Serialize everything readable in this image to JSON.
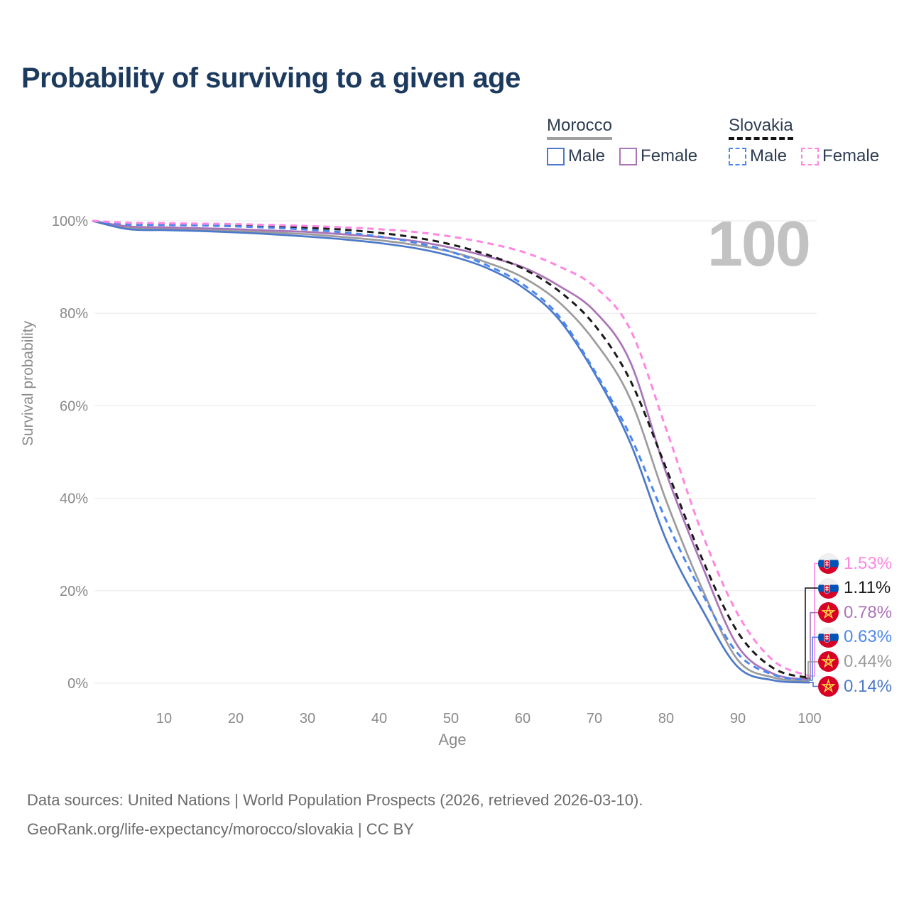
{
  "title": "Probability of surviving to a given age",
  "watermark": "100",
  "legend": {
    "groups": [
      {
        "name": "Morocco",
        "underline": {
          "style": "solid",
          "color": "#a0a0a0"
        },
        "items": [
          {
            "label": "Male",
            "color": "#4c79c9",
            "dash": false
          },
          {
            "label": "Female",
            "color": "#ab74b8",
            "dash": false
          }
        ]
      },
      {
        "name": "Slovakia",
        "underline": {
          "style": "dashed",
          "color": "#141414"
        },
        "items": [
          {
            "label": "Male",
            "color": "#4c88f0",
            "dash": true
          },
          {
            "label": "Female",
            "color": "#ff87e3",
            "dash": true
          }
        ]
      }
    ]
  },
  "chart_data": {
    "type": "line",
    "title": "Probability of surviving to a given age",
    "xlabel": "Age",
    "ylabel": "Survival probability",
    "xlim": [
      0,
      100
    ],
    "ylim": [
      0,
      100
    ],
    "grid": true,
    "x_ticks": [
      10,
      20,
      30,
      40,
      50,
      60,
      70,
      80,
      90,
      100
    ],
    "y_ticks": [
      0,
      20,
      40,
      60,
      80,
      100
    ],
    "y_tick_labels": [
      "0%",
      "20%",
      "40%",
      "60%",
      "80%",
      "100%"
    ],
    "x": [
      0,
      5,
      10,
      15,
      20,
      25,
      30,
      35,
      40,
      45,
      50,
      55,
      60,
      65,
      70,
      75,
      80,
      85,
      90,
      95,
      100
    ],
    "series": [
      {
        "id": "morocco_all",
        "country": "Morocco",
        "sex": "Both sexes",
        "color": "#9c9c9c",
        "dash": false,
        "end_label": "0.44%",
        "flag": "ma",
        "values": [
          100,
          98.5,
          98.3,
          98.1,
          97.8,
          97.5,
          97.1,
          96.5,
          95.8,
          94.8,
          93.3,
          91.0,
          87.8,
          82.5,
          74.0,
          61.5,
          39.5,
          20.5,
          5.0,
          1.2,
          0.44
        ]
      },
      {
        "id": "morocco_female",
        "country": "Morocco",
        "sex": "Female",
        "color": "#ab74b8",
        "dash": false,
        "end_label": "0.78%",
        "flag": "ma",
        "values": [
          100,
          98.8,
          98.6,
          98.4,
          98.2,
          97.9,
          97.6,
          97.1,
          96.5,
          95.6,
          94.2,
          92.3,
          90.0,
          86.0,
          80.5,
          69.5,
          45.5,
          25.5,
          8.0,
          2.0,
          0.78
        ]
      },
      {
        "id": "morocco_male",
        "country": "Morocco",
        "sex": "Male",
        "color": "#4c79c9",
        "dash": false,
        "end_label": "0.14%",
        "flag": "ma",
        "values": [
          100,
          98.2,
          98.0,
          97.8,
          97.5,
          97.1,
          96.6,
          96.0,
          95.2,
          94.1,
          92.4,
          89.8,
          85.6,
          78.8,
          67.1,
          52.0,
          31.0,
          16.0,
          3.5,
          0.6,
          0.14
        ]
      },
      {
        "id": "slovakia_all",
        "country": "Slovakia",
        "sex": "Both sexes",
        "color": "#1a1a1a",
        "dash": true,
        "end_label": "1.11%",
        "flag": "sk",
        "values": [
          100,
          99.4,
          99.3,
          99.2,
          99.0,
          98.8,
          98.5,
          98.1,
          97.4,
          96.4,
          94.9,
          92.7,
          89.7,
          84.9,
          77.5,
          65.5,
          46.5,
          27.0,
          11.0,
          3.2,
          1.11
        ]
      },
      {
        "id": "slovakia_male",
        "country": "Slovakia",
        "sex": "Male",
        "color": "#4c88f0",
        "dash": true,
        "end_label": "0.63%",
        "flag": "sk",
        "values": [
          100,
          99.2,
          99.1,
          99.0,
          98.8,
          98.5,
          98.1,
          97.5,
          96.6,
          95.3,
          93.3,
          90.4,
          86.3,
          79.5,
          67.6,
          53.5,
          35.2,
          19.5,
          6.4,
          1.8,
          0.63
        ]
      },
      {
        "id": "slovakia_female",
        "country": "Slovakia",
        "sex": "Female",
        "color": "#ff87e3",
        "dash": true,
        "end_label": "1.53%",
        "flag": "sk",
        "values": [
          100,
          99.6,
          99.5,
          99.4,
          99.3,
          99.1,
          98.9,
          98.6,
          98.2,
          97.6,
          96.6,
          95.2,
          93.3,
          90.2,
          85.8,
          76.5,
          55.0,
          32.5,
          14.9,
          4.8,
          1.53
        ]
      }
    ],
    "end_labels": [
      "1.53%",
      "1.11%",
      "0.78%",
      "0.63%",
      "0.44%",
      "0.14%"
    ],
    "legend_position": "top-right"
  },
  "footer": {
    "line1": "Data sources: United Nations | World Population Prospects (2026, retrieved 2026-03-10).",
    "line2": "GeoRank.org/life-expectancy/morocco/slovakia | CC BY"
  }
}
